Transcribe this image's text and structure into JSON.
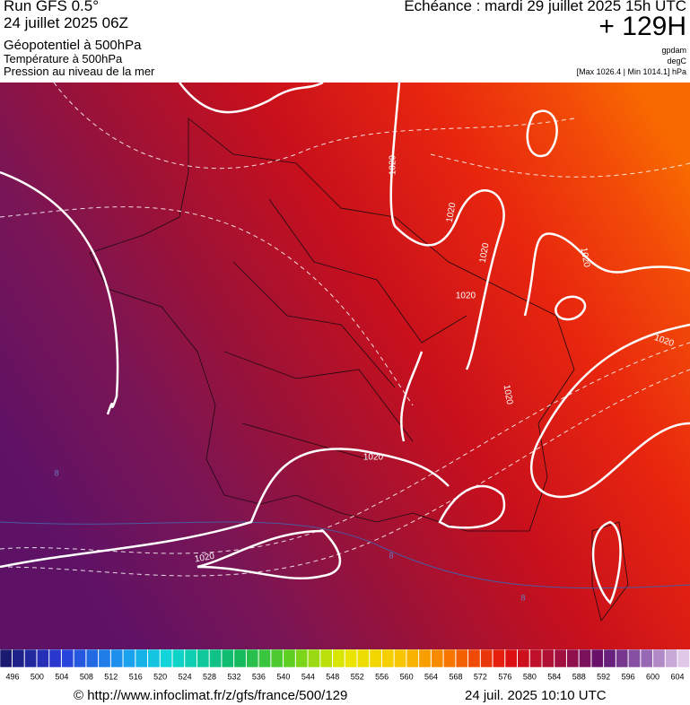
{
  "header": {
    "run": "Run GFS 0.5°",
    "date": "24 juillet 2025 06Z",
    "field1": "Géopotentiel à 500hPa",
    "field2": "Température à 500hPa",
    "field3": "Pression au niveau de la mer",
    "echeance": "Echéance : mardi 29 juillet 2025 15h UTC",
    "lead": "+ 129H",
    "unit1": "gpdam",
    "unit2": "degC",
    "range": "[Max 1026.4 | Min 1014.1] hPa"
  },
  "map": {
    "pressure_labels": [
      "1020",
      "1020",
      "1020",
      "1020",
      "1020",
      "1020",
      "1020",
      "1020",
      "1020"
    ],
    "isotherm_labels": [
      "8",
      "8",
      "8"
    ]
  },
  "legend": {
    "labels": [
      496,
      500,
      504,
      508,
      512,
      516,
      520,
      524,
      528,
      532,
      536,
      540,
      544,
      548,
      552,
      556,
      560,
      564,
      568,
      572,
      576,
      580,
      584,
      588,
      592,
      596,
      600,
      604
    ]
  },
  "footer": {
    "url": "© http://www.infoclimat.fr/z/gfs/france/500/129",
    "timestamp": "24 juil. 2025 10:10 UTC"
  }
}
